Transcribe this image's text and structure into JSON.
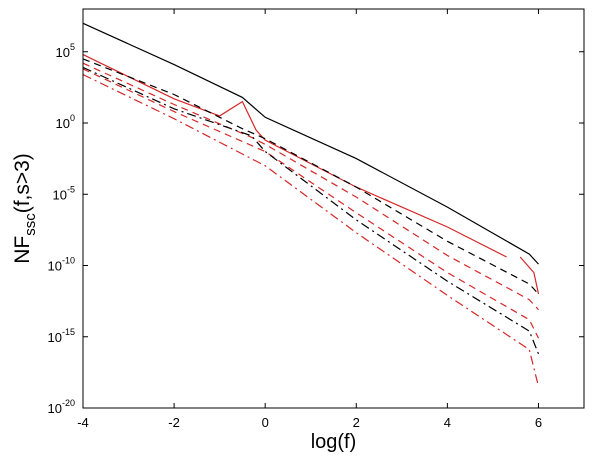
{
  "chart_data": {
    "type": "line",
    "xlabel": "log(f)",
    "ylabel": {
      "main": "NF",
      "sub": "ssc",
      "rest": "(f,s>3)"
    },
    "xlim": [
      -4,
      7
    ],
    "ylim_log10": [
      -20,
      8
    ],
    "y_scale": "log",
    "x_ticks": [
      "-4",
      "-2",
      "0",
      "2",
      "4",
      "6"
    ],
    "y_ticks": [
      {
        "base": "10",
        "exp": "5"
      },
      {
        "base": "10",
        "exp": "0"
      },
      {
        "base": "10",
        "exp": "-5"
      },
      {
        "base": "10",
        "exp": "-10"
      },
      {
        "base": "10",
        "exp": "-15"
      },
      {
        "base": "10",
        "exp": "-20"
      }
    ],
    "grid": false,
    "legend": "none",
    "series": [
      {
        "color": "#000000",
        "style": "solid",
        "points": [
          [
            -4,
            7.0
          ],
          [
            -2,
            4.1
          ],
          [
            -0.5,
            1.8
          ],
          [
            0,
            0.4
          ],
          [
            2,
            -2.5
          ],
          [
            4,
            -5.9
          ],
          [
            5.8,
            -9.2
          ],
          [
            6,
            -9.9
          ]
        ]
      },
      {
        "color": "#d62728",
        "style": "solid",
        "points": [
          [
            -4,
            4.8
          ],
          [
            -2,
            1.7
          ],
          [
            -1,
            0.5
          ],
          [
            -0.5,
            1.5
          ],
          [
            -0.2,
            -0.5
          ],
          [
            0,
            -1.2
          ],
          [
            2,
            -4.5
          ],
          [
            4,
            -7.3
          ],
          [
            5.3,
            -9.4
          ]
        ]
      },
      {
        "color": "#d62728",
        "style": "solid",
        "points": [
          [
            5.6,
            -9.4
          ],
          [
            5.9,
            -10.5
          ],
          [
            6,
            -12.0
          ]
        ]
      },
      {
        "color": "#000000",
        "style": "dashed",
        "points": [
          [
            -4,
            4.5
          ],
          [
            -2,
            2.0
          ],
          [
            -0.5,
            -0.4
          ],
          [
            0,
            -1.1
          ],
          [
            2,
            -4.5
          ],
          [
            4,
            -8.3
          ],
          [
            5.8,
            -11.3
          ],
          [
            6,
            -12.0
          ]
        ]
      },
      {
        "color": "#d62728",
        "style": "dashed",
        "points": [
          [
            -4,
            4.2
          ],
          [
            -2,
            1.3
          ],
          [
            -0.3,
            -1.0
          ],
          [
            0,
            -1.5
          ],
          [
            2,
            -5.2
          ],
          [
            4,
            -9.3
          ],
          [
            5.8,
            -12.4
          ],
          [
            6,
            -13.1
          ]
        ]
      },
      {
        "color": "#d62728",
        "style": "dashed",
        "points": [
          [
            -4,
            3.8
          ],
          [
            -2,
            0.8
          ],
          [
            0,
            -2.0
          ],
          [
            2,
            -6.3
          ],
          [
            4,
            -10.5
          ],
          [
            5.8,
            -13.8
          ],
          [
            6,
            -15.1
          ]
        ]
      },
      {
        "color": "#000000",
        "style": "dashdot",
        "points": [
          [
            -4,
            3.9
          ],
          [
            -2,
            1.0
          ],
          [
            -0.3,
            -0.9
          ],
          [
            0,
            -2.0
          ],
          [
            2,
            -6.8
          ],
          [
            4,
            -11.1
          ],
          [
            5.8,
            -14.6
          ],
          [
            6,
            -16.2
          ]
        ]
      },
      {
        "color": "#d62728",
        "style": "dashdot",
        "points": [
          [
            -4,
            3.4
          ],
          [
            -2,
            0.3
          ],
          [
            0,
            -3.0
          ],
          [
            2,
            -7.7
          ],
          [
            4,
            -12.1
          ],
          [
            5.8,
            -15.9
          ],
          [
            6,
            -18.5
          ]
        ]
      }
    ]
  }
}
